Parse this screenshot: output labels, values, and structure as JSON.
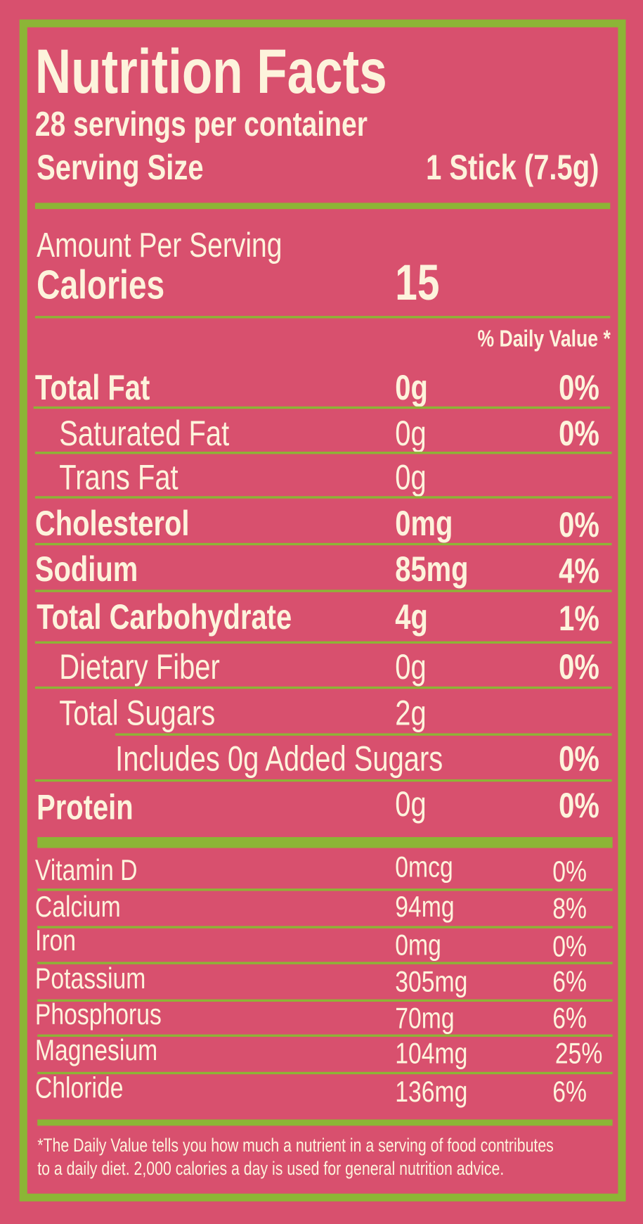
{
  "title": "Nutrition Facts",
  "servings_per_container": "28 servings per container",
  "serving_size_label": "Serving Size",
  "serving_size_value": "1 Stick (7.5g)",
  "amount_per_serving": "Amount Per Serving",
  "calories_label": "Calories",
  "calories_value": "15",
  "daily_value_header": "% Daily Value *",
  "nutrients": [
    {
      "name": "Total Fat",
      "amount": "0g",
      "dv": "0%"
    },
    {
      "name": "Saturated Fat",
      "amount": "0g",
      "dv": "0%"
    },
    {
      "name": "Trans Fat",
      "amount": "0g"
    },
    {
      "name": "Cholesterol",
      "amount": "0mg",
      "dv": "0%"
    },
    {
      "name": "Sodium",
      "amount": "85mg",
      "dv": "4%"
    },
    {
      "name": "Total Carbohydrate",
      "amount": "4g",
      "dv": "1%"
    },
    {
      "name": "Dietary Fiber",
      "amount": "0g",
      "dv": "0%"
    },
    {
      "name": "Total Sugars",
      "amount": "2g"
    },
    {
      "name": "Includes 0g Added Sugars",
      "dv": "0%"
    },
    {
      "name": "Protein",
      "amount": "0g",
      "dv": "0%"
    }
  ],
  "micronutrients": [
    {
      "name": "Vitamin D",
      "amount": "0mcg",
      "dv": "0%"
    },
    {
      "name": "Calcium",
      "amount": "94mg",
      "dv": "8%"
    },
    {
      "name": "Iron",
      "amount": "0mg",
      "dv": "0%"
    },
    {
      "name": "Potassium",
      "amount": "305mg",
      "dv": "6%"
    },
    {
      "name": "Phosphorus",
      "amount": "70mg",
      "dv": "6%"
    },
    {
      "name": "Magnesium",
      "amount": "104mg",
      "dv": "25%"
    },
    {
      "name": "Chloride",
      "amount": "136mg",
      "dv": "6%"
    }
  ],
  "footnote_line1": "*The Daily Value tells you how much a nutrient in a serving of food contributes",
  "footnote_line2": "to a daily diet. 2,000 calories a day is used for general nutrition advice.",
  "colors": {
    "background": "#d8506e",
    "accent": "#8cb536",
    "text": "#fdf3dc"
  }
}
